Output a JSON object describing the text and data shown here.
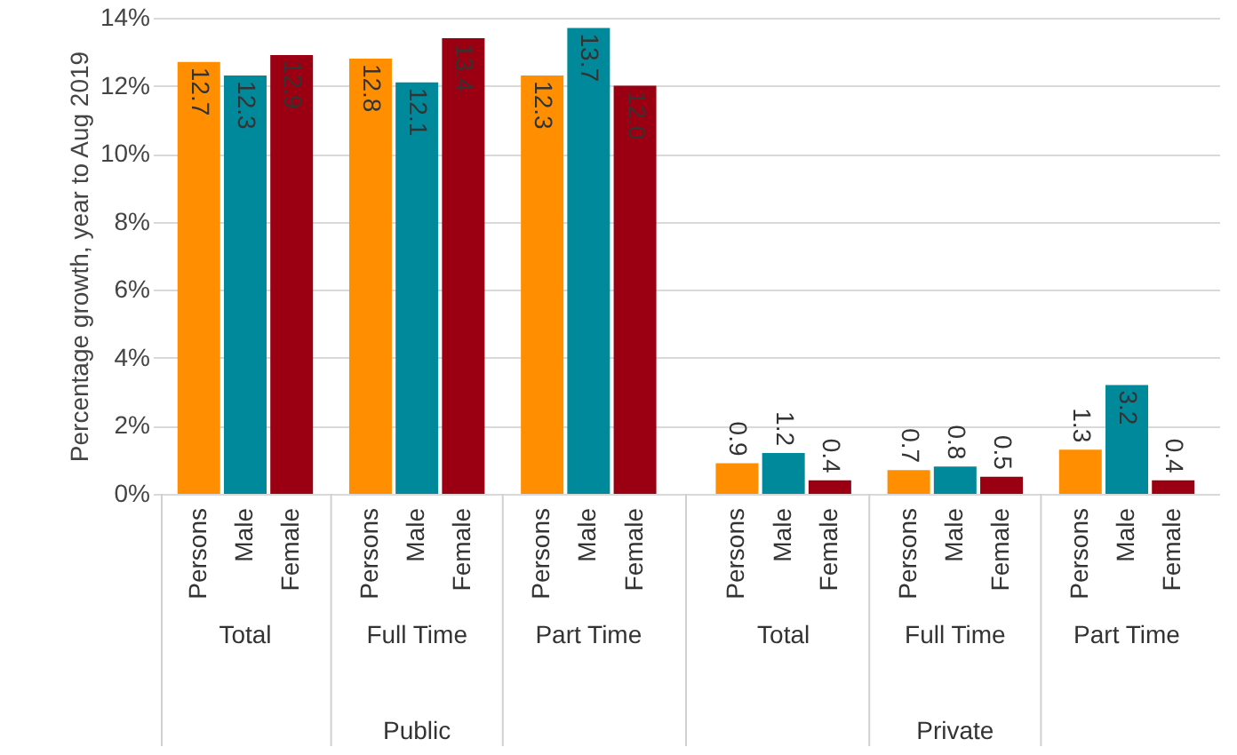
{
  "chart_data": {
    "type": "bar",
    "ylabel": "Percentage growth, year to Aug 2019",
    "categories": [
      "Persons",
      "Male",
      "Female",
      "Persons",
      "Male",
      "Female",
      "Persons",
      "Male",
      "Female",
      "Persons",
      "Male",
      "Female",
      "Persons",
      "Male",
      "Female",
      "Persons",
      "Male",
      "Female"
    ],
    "values": [
      12.7,
      12.3,
      12.9,
      12.8,
      12.1,
      13.4,
      12.3,
      13.7,
      12.0,
      0.9,
      1.2,
      0.4,
      0.7,
      0.8,
      0.5,
      1.3,
      3.2,
      0.4
    ],
    "colors": [
      "#ff8f00",
      "#00899a",
      "#9a0012",
      "#ff8f00",
      "#00899a",
      "#9a0012",
      "#ff8f00",
      "#00899a",
      "#9a0012",
      "#ff8f00",
      "#00899a",
      "#9a0012",
      "#ff8f00",
      "#00899a",
      "#9a0012",
      "#ff8f00",
      "#00899a",
      "#9a0012"
    ],
    "annotations": [
      "Total",
      "Full Time",
      "Part Time",
      "Total",
      "Full Time",
      "Part Time",
      "Public",
      "Private"
    ],
    "value_labels": [
      "12.7",
      "12.3",
      "12.9",
      "12.8",
      "12.1",
      "13.4",
      "12.3",
      "13.7",
      "12.0",
      "0.9",
      "1.2",
      "0.4",
      "0.7",
      "0.8",
      "0.5",
      "1.3",
      "3.2",
      "0.4"
    ],
    "ylim": [
      0,
      14
    ],
    "yticks": [
      {
        "value": 0,
        "label": "0%"
      },
      {
        "value": 2,
        "label": "2%"
      },
      {
        "value": 4,
        "label": "4%"
      },
      {
        "value": 6,
        "label": "6%"
      },
      {
        "value": 8,
        "label": "8%"
      },
      {
        "value": 10,
        "label": "10%"
      },
      {
        "value": 12,
        "label": "12%"
      },
      {
        "value": 14,
        "label": "14%"
      }
    ],
    "grid": "y"
  }
}
